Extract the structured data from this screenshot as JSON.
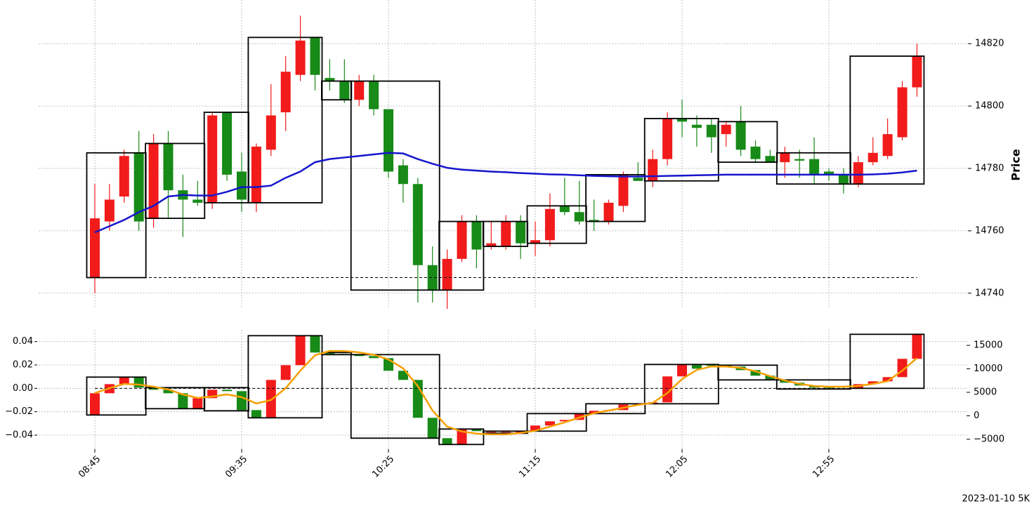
{
  "chart_data": [
    {
      "type": "candlestick",
      "ylabel": "Price",
      "open": [
        14745,
        14763,
        14771,
        14785,
        14764,
        14788,
        14773,
        14770,
        14769,
        14798,
        14779,
        14769,
        14786,
        14798,
        14810,
        14822,
        14809,
        14808,
        14802,
        14808,
        14799,
        14781,
        14775,
        14749,
        14741,
        14751,
        14763,
        14755,
        14755,
        14763,
        14756,
        14757,
        14768,
        14766,
        14763.5,
        14763,
        14768,
        14777,
        14776,
        14783,
        14796,
        14794,
        14794,
        14791,
        14795,
        14787,
        14784,
        14782,
        14783,
        14783,
        14779,
        14778,
        14775,
        14782,
        14784,
        14790,
        14806
      ],
      "high": [
        14775,
        14775,
        14786,
        14792,
        14791,
        14792,
        14778,
        14776,
        14798,
        14798,
        14785,
        14788,
        14807,
        14816,
        14829,
        14822,
        14815,
        14815,
        14810,
        14810,
        14799,
        14783,
        14777,
        14755,
        14754,
        14765,
        14765,
        14763,
        14765,
        14765,
        14763,
        14772,
        14777,
        14776,
        14770,
        14770,
        14779,
        14782,
        14786,
        14798,
        14802,
        14797,
        14796,
        14795,
        14800,
        14789,
        14786,
        14787,
        14786,
        14790,
        14780,
        14780,
        14784,
        14790,
        14796,
        14808,
        14820
      ],
      "low": [
        14740,
        14760,
        14769,
        14760,
        14761,
        14764,
        14758,
        14768,
        14767,
        14776,
        14766,
        14766,
        14784,
        14792,
        14808,
        14805,
        14805,
        14801,
        14800,
        14797,
        14777,
        14769,
        14737,
        14737,
        14735,
        14750,
        14748,
        14754,
        14754,
        14751,
        14752,
        14755,
        14765,
        14762,
        14760,
        14762,
        14766,
        14776,
        14774,
        14781,
        14790,
        14787,
        14785,
        14787,
        14784,
        14782,
        14782,
        14777,
        14777,
        14775,
        14776,
        14772,
        14774,
        14781,
        14783,
        14789,
        14803
      ],
      "close": [
        14764,
        14770,
        14784,
        14763,
        14788,
        14773,
        14770,
        14769,
        14797,
        14778,
        14770,
        14787,
        14797,
        14811,
        14821,
        14810,
        14808,
        14802,
        14808,
        14799,
        14779,
        14775,
        14749,
        14741,
        14751,
        14763,
        14754,
        14756,
        14763,
        14756,
        14757,
        14767,
        14766,
        14763,
        14763,
        14769,
        14778,
        14776,
        14783,
        14796,
        14795,
        14793,
        14790,
        14794,
        14786,
        14783,
        14782,
        14785,
        14782.5,
        14778,
        14778,
        14775,
        14782,
        14785,
        14791,
        14806,
        14816
      ],
      "up_color": "#f21b1b",
      "down_color": "#178a17",
      "ma": {
        "color": "#1515cc",
        "values": [
          14759.5,
          14761.5,
          14763.5,
          14766,
          14768,
          14771,
          14771.5,
          14771.3,
          14771.3,
          14772.5,
          14774,
          14774,
          14774.5,
          14777,
          14779,
          14782,
          14783,
          14783.5,
          14784,
          14784.5,
          14785,
          14784.8,
          14783,
          14781.5,
          14780.2,
          14779.6,
          14779.3,
          14779,
          14778.8,
          14778.5,
          14778.3,
          14778.1,
          14778,
          14777.8,
          14777.6,
          14777.5,
          14777.4,
          14777.4,
          14777.5,
          14777.6,
          14777.7,
          14777.8,
          14777.9,
          14778,
          14778,
          14778,
          14778,
          14778,
          14778,
          14778,
          14778,
          14778,
          14778,
          14778.1,
          14778.3,
          14778.7,
          14779.3
        ]
      },
      "boxes": [
        {
          "start": 0,
          "end": 3,
          "high": 14785,
          "low": 14745
        },
        {
          "start": 4,
          "end": 7,
          "high": 14788,
          "low": 14764
        },
        {
          "start": 8,
          "end": 10,
          "high": 14798,
          "low": 14769
        },
        {
          "start": 11,
          "end": 15,
          "high": 14822,
          "low": 14769
        },
        {
          "start": 16,
          "end": 17,
          "high": 14808,
          "low": 14802
        },
        {
          "start": 18,
          "end": 23,
          "high": 14808,
          "low": 14741
        },
        {
          "start": 24,
          "end": 26,
          "high": 14763,
          "low": 14741
        },
        {
          "start": 27,
          "end": 29,
          "high": 14763,
          "low": 14755
        },
        {
          "start": 30,
          "end": 33,
          "high": 14768,
          "low": 14756
        },
        {
          "start": 34,
          "end": 37,
          "high": 14778,
          "low": 14763
        },
        {
          "start": 38,
          "end": 42,
          "high": 14796,
          "low": 14776
        },
        {
          "start": 43,
          "end": 46,
          "high": 14795,
          "low": 14782
        },
        {
          "start": 47,
          "end": 51,
          "high": 14785,
          "low": 14775
        },
        {
          "start": 52,
          "end": 56,
          "high": 14816,
          "low": 14775
        }
      ],
      "hline": 14745,
      "ylim": [
        14735,
        14834
      ],
      "yticks": [
        14740,
        14760,
        14780,
        14800,
        14820
      ],
      "grid": true
    },
    {
      "type": "candlestick",
      "categories": [
        "08:45",
        null,
        null,
        null,
        null,
        null,
        null,
        null,
        null,
        null,
        "09:35",
        null,
        null,
        null,
        null,
        null,
        null,
        null,
        null,
        null,
        "10:25",
        null,
        null,
        null,
        null,
        null,
        null,
        null,
        null,
        null,
        "11:15",
        null,
        null,
        null,
        null,
        null,
        null,
        null,
        null,
        null,
        "12:05",
        null,
        null,
        null,
        null,
        null,
        null,
        null,
        null,
        null,
        "12:55",
        null,
        null,
        null,
        null,
        null,
        null
      ],
      "open": [
        -0.0228,
        -0.0042,
        0.0036,
        0.0096,
        0.0006,
        -0.0012,
        -0.0042,
        -0.0174,
        -0.0084,
        -0.0012,
        -0.0024,
        -0.0186,
        -0.0252,
        0.0072,
        0.0198,
        0.045,
        0.0306,
        0.0294,
        0.0288,
        0.0276,
        0.0258,
        0.015,
        0.0072,
        -0.0252,
        -0.0426,
        -0.048,
        -0.0348,
        -0.0378,
        -0.0378,
        -0.0384,
        -0.0366,
        -0.0318,
        -0.0282,
        -0.027,
        -0.0216,
        -0.0192,
        -0.0186,
        -0.0138,
        -0.0132,
        -0.012,
        0.0102,
        0.0204,
        0.0204,
        0.0198,
        0.0186,
        0.0156,
        0.0108,
        0.0072,
        0.0048,
        0.0024,
        0.0006,
        0,
        0,
        0.0036,
        0.006,
        0.0096,
        0.0252
      ],
      "close": [
        -0.0042,
        0.0036,
        0.0096,
        0.0006,
        -0.0012,
        -0.0042,
        -0.0174,
        -0.0084,
        -0.0012,
        -0.0024,
        -0.0186,
        -0.0252,
        0.0072,
        0.0198,
        0.045,
        0.0306,
        0.0294,
        0.0288,
        0.0276,
        0.0258,
        0.015,
        0.0072,
        -0.0252,
        -0.0426,
        -0.048,
        -0.0348,
        -0.0366,
        -0.0372,
        -0.0372,
        -0.0366,
        -0.0318,
        -0.0282,
        -0.027,
        -0.0216,
        -0.0192,
        -0.0186,
        -0.0138,
        -0.0132,
        -0.012,
        0.0102,
        0.0204,
        0.0168,
        0.0192,
        0.0186,
        0.0156,
        0.0108,
        0.0072,
        0.0048,
        0.0024,
        0.0006,
        0,
        -0.0006,
        0.0036,
        0.006,
        0.0096,
        0.0252,
        0.0462
      ],
      "up_color": "#f21b1b",
      "down_color": "#178a17",
      "series": [
        {
          "color": "#f5a000",
          "axis": "y2",
          "values": [
            4850,
            5890,
            6790,
            6640,
            6190,
            5600,
            4550,
            3810,
            4100,
            4550,
            3960,
            2620,
            3360,
            5890,
            9620,
            12900,
            13800,
            13800,
            13500,
            13000,
            12000,
            10100,
            6340,
            1130,
            -2300,
            -3340,
            -3790,
            -3940,
            -3940,
            -3640,
            -3190,
            -2300,
            -1400,
            -360,
            540,
            1130,
            1720,
            2320,
            2770,
            4850,
            7830,
            9770,
            10500,
            10500,
            10200,
            9470,
            8430,
            7530,
            6790,
            6340,
            6190,
            6190,
            6340,
            6790,
            7380,
            9620,
            12300
          ]
        }
      ],
      "boxes": [
        {
          "start": 0,
          "end": 3,
          "high": 0.0096,
          "low": -0.0228
        },
        {
          "start": 4,
          "end": 7,
          "high": 0.0006,
          "low": -0.0174
        },
        {
          "start": 8,
          "end": 10,
          "high": 0.0006,
          "low": -0.0192
        },
        {
          "start": 11,
          "end": 15,
          "high": 0.045,
          "low": -0.0252
        },
        {
          "start": 16,
          "end": 17,
          "high": 0.0306,
          "low": 0.0288
        },
        {
          "start": 18,
          "end": 23,
          "high": 0.0288,
          "low": -0.0426
        },
        {
          "start": 24,
          "end": 26,
          "high": -0.0348,
          "low": -0.048
        },
        {
          "start": 27,
          "end": 29,
          "high": -0.0366,
          "low": -0.0384
        },
        {
          "start": 30,
          "end": 33,
          "high": -0.0216,
          "low": -0.0366
        },
        {
          "start": 34,
          "end": 37,
          "high": -0.0132,
          "low": -0.0216
        },
        {
          "start": 38,
          "end": 42,
          "high": 0.0204,
          "low": -0.0132
        },
        {
          "start": 43,
          "end": 46,
          "high": 0.0198,
          "low": 0.0072
        },
        {
          "start": 47,
          "end": 51,
          "high": 0.0072,
          "low": -0.0006
        },
        {
          "start": 52,
          "end": 56,
          "high": 0.0462,
          "low": 0
        }
      ],
      "hline": 0,
      "ylim": [
        -0.052,
        0.05
      ],
      "yticks": [
        {
          "value": -0.04,
          "label": "−0.04"
        },
        {
          "value": -0.02,
          "label": "−0.02"
        },
        {
          "value": 0,
          "label": "0.00"
        },
        0.02,
        0.04
      ],
      "y2lim": [
        -7100,
        18300
      ],
      "y2ticks": [
        {
          "value": -5000,
          "label": "−5000"
        },
        0,
        5000,
        10000,
        15000
      ],
      "grid": true,
      "footer": "2023-01-10 5K"
    }
  ]
}
